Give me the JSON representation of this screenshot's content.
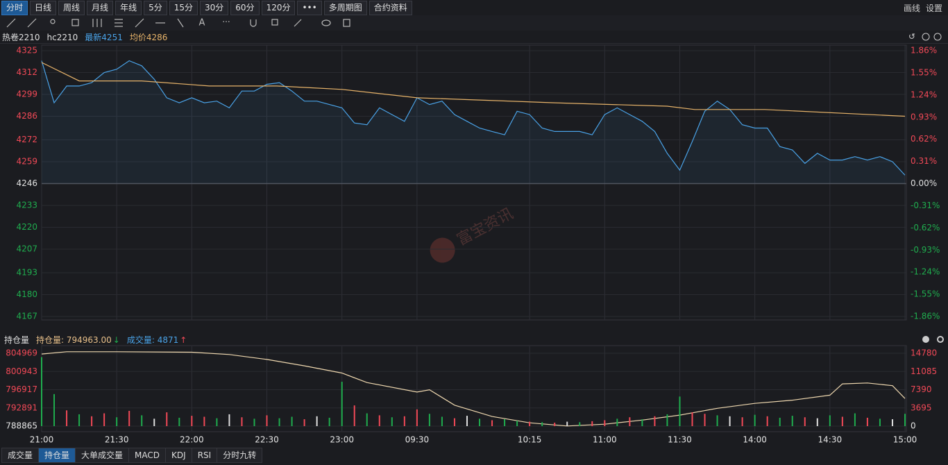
{
  "toolbar": {
    "tabs": [
      "分时",
      "日线",
      "周线",
      "月线",
      "年线",
      "5分",
      "15分",
      "30分",
      "60分",
      "120分",
      "•••",
      "多周期图",
      "合约资料"
    ],
    "right": [
      "画线",
      "设置"
    ]
  },
  "quote": {
    "name": "热卷2210",
    "code": "hc2210",
    "latest": "最新4251",
    "avg": "均价4286"
  },
  "indicator_bar": {
    "title": "持仓量",
    "oi_label": "持仓量: 794963.00",
    "vol_label": "成交量: 4871"
  },
  "bottom_tabs": [
    "成交量",
    "持仓量",
    "大单成交量",
    "MACD",
    "KDJ",
    "RSI",
    "分时九转"
  ],
  "watermark": "富宝资讯",
  "chart_data": [
    {
      "type": "line",
      "xlim": [
        0,
        345
      ],
      "ylim": [
        4167,
        4325
      ],
      "yticks": [
        4325,
        4312,
        4299,
        4286,
        4272,
        4259,
        4246,
        4233,
        4220,
        4207,
        4193,
        4180,
        4167
      ],
      "y2lim": [
        -1.86,
        1.86
      ],
      "y2ticks": [
        {
          "value": 1.86,
          "label": "1.86%"
        },
        {
          "value": 1.55,
          "label": "1.55%"
        },
        {
          "value": 1.24,
          "label": "1.24%"
        },
        {
          "value": 0.93,
          "label": "0.93%"
        },
        {
          "value": 0.62,
          "label": "0.62%"
        },
        {
          "value": 0.31,
          "label": "0.31%"
        },
        {
          "value": 0,
          "label": "0.00%"
        },
        {
          "value": -0.31,
          "label": "-0.31%"
        },
        {
          "value": -0.62,
          "label": "-0.62%"
        },
        {
          "value": -0.93,
          "label": "-0.93%"
        },
        {
          "value": -1.24,
          "label": "-1.24%"
        },
        {
          "value": -1.55,
          "label": "-1.55%"
        },
        {
          "value": -1.86,
          "label": "-1.86%"
        }
      ],
      "grid": true,
      "series": [
        {
          "color": "#4aa3e8",
          "x": [
            0,
            5,
            10,
            15,
            20,
            25,
            30,
            35,
            40,
            45,
            50,
            55,
            60,
            65,
            70,
            75,
            80,
            85,
            90,
            95,
            100,
            105,
            110,
            115,
            120,
            125,
            130,
            135,
            140,
            145,
            150,
            155,
            160,
            165,
            170,
            175,
            180,
            185,
            190,
            195,
            200,
            205,
            210,
            215,
            220,
            225,
            230,
            235,
            240,
            245,
            250,
            255,
            260,
            265,
            270,
            275,
            280,
            285,
            290,
            295,
            300,
            305,
            310,
            315,
            320,
            325,
            330,
            335,
            340,
            345
          ],
          "values": [
            4319,
            4294,
            4304,
            4304,
            4306,
            4312,
            4314,
            4319,
            4316,
            4308,
            4297,
            4294,
            4297,
            4294,
            4295,
            4291,
            4301,
            4301,
            4305,
            4306,
            4301,
            4295,
            4295,
            4293,
            4291,
            4282,
            4281,
            4291,
            4287,
            4283,
            4297,
            4293,
            4295,
            4287,
            4283,
            4279,
            4277,
            4275,
            4289,
            4287,
            4279,
            4277,
            4277,
            4277,
            4275,
            4287,
            4291,
            4287,
            4283,
            4277,
            4264,
            4254,
            4271,
            4289,
            4295,
            4290,
            4281,
            4279,
            4279,
            4268,
            4266,
            4258,
            4264,
            4260,
            4260,
            4262,
            4260,
            4262,
            4259,
            4251
          ]
        },
        {
          "color": "#e8b46a",
          "x": [
            0,
            15,
            40,
            67,
            94,
            120,
            150,
            205,
            250,
            261,
            289,
            345
          ],
          "values": [
            4318,
            4307,
            4307,
            4304,
            4304,
            4302,
            4297,
            4294,
            4292,
            4290,
            4290,
            4286
          ]
        }
      ]
    },
    {
      "type": "combo",
      "xlim": [
        0,
        345
      ],
      "ylim": [
        788865,
        804969
      ],
      "yticks": [
        804969,
        800943,
        796917,
        792891,
        788865
      ],
      "y2lim": [
        0,
        14780
      ],
      "y2ticks": [
        14780,
        11085,
        7390,
        3695,
        0
      ],
      "xticks": [
        {
          "value": 0,
          "label": "21:00"
        },
        {
          "value": 30,
          "label": "21:30"
        },
        {
          "value": 60,
          "label": "22:00"
        },
        {
          "value": 90,
          "label": "22:30"
        },
        {
          "value": 120,
          "label": "23:00"
        },
        {
          "value": 150,
          "label": "09:30"
        },
        {
          "value": 195,
          "label": "10:15"
        },
        {
          "value": 225,
          "label": "11:00"
        },
        {
          "value": 255,
          "label": "11:30"
        },
        {
          "value": 285,
          "label": "14:00"
        },
        {
          "value": 315,
          "label": "14:30"
        },
        {
          "value": 345,
          "label": "15:00"
        }
      ],
      "series": [
        {
          "type": "line",
          "color": "#f0d9b0",
          "x": [
            0,
            10,
            30,
            60,
            75,
            90,
            105,
            120,
            130,
            150,
            155,
            165,
            180,
            195,
            210,
            225,
            240,
            255,
            270,
            285,
            300,
            315,
            320,
            330,
            340,
            345
          ],
          "values": [
            804800,
            805300,
            805300,
            805200,
            804700,
            803600,
            802200,
            800600,
            798500,
            796400,
            796900,
            793500,
            791000,
            789600,
            788900,
            789300,
            790200,
            791300,
            792800,
            793900,
            794600,
            795700,
            798200,
            798400,
            797800,
            794963
          ]
        },
        {
          "type": "bar",
          "axis": "y2",
          "x": [
            0,
            5,
            10,
            15,
            20,
            25,
            30,
            35,
            40,
            45,
            50,
            55,
            60,
            65,
            70,
            75,
            80,
            85,
            90,
            95,
            100,
            105,
            110,
            115,
            120,
            125,
            130,
            135,
            140,
            145,
            150,
            155,
            160,
            165,
            170,
            175,
            180,
            185,
            190,
            195,
            200,
            205,
            210,
            215,
            220,
            225,
            230,
            235,
            240,
            245,
            250,
            255,
            260,
            265,
            270,
            275,
            280,
            285,
            290,
            295,
            300,
            305,
            310,
            315,
            320,
            325,
            330,
            335,
            340,
            345
          ],
          "values": [
            14000,
            6500,
            3200,
            2400,
            2000,
            2600,
            1800,
            3100,
            2200,
            1500,
            2800,
            1700,
            2100,
            1900,
            1600,
            2400,
            1800,
            1500,
            2200,
            1600,
            1900,
            1400,
            2000,
            1700,
            9000,
            4200,
            2600,
            2200,
            1800,
            2000,
            3400,
            2500,
            1900,
            1600,
            2100,
            1500,
            1200,
            1400,
            1100,
            900,
            800,
            700,
            900,
            800,
            1000,
            1200,
            1500,
            1800,
            1400,
            2000,
            2400,
            6000,
            2800,
            2500,
            2200,
            2000,
            1800,
            2300,
            2000,
            1700,
            2100,
            1800,
            1600,
            2200,
            1900,
            2600,
            1700,
            1500,
            1400,
            2500
          ],
          "colors": [
            "#1fad4e",
            "#1fad4e",
            "#f24957",
            "#1fad4e",
            "#f24957",
            "#f24957",
            "#1fad4e",
            "#f24957",
            "#1fad4e",
            "#e0e0e0",
            "#f24957",
            "#1fad4e",
            "#f24957",
            "#f24957",
            "#1fad4e",
            "#e0e0e0",
            "#f24957",
            "#1fad4e",
            "#f24957",
            "#1fad4e",
            "#1fad4e",
            "#f24957",
            "#e0e0e0",
            "#1fad4e",
            "#1fad4e",
            "#f24957",
            "#1fad4e",
            "#f24957",
            "#1fad4e",
            "#f24957",
            "#f24957",
            "#1fad4e",
            "#1fad4e",
            "#f24957",
            "#e0e0e0",
            "#1fad4e",
            "#f24957",
            "#1fad4e",
            "#1fad4e",
            "#f24957",
            "#1fad4e",
            "#f24957",
            "#e0e0e0",
            "#1fad4e",
            "#f24957",
            "#f24957",
            "#1fad4e",
            "#f24957",
            "#1fad4e",
            "#f24957",
            "#1fad4e",
            "#1fad4e",
            "#f24957",
            "#f24957",
            "#1fad4e",
            "#e0e0e0",
            "#f24957",
            "#1fad4e",
            "#f24957",
            "#1fad4e",
            "#1fad4e",
            "#f24957",
            "#e0e0e0",
            "#1fad4e",
            "#f24957",
            "#1fad4e",
            "#f24957",
            "#1fad4e",
            "#e0e0e0",
            "#1fad4e"
          ]
        }
      ]
    }
  ]
}
